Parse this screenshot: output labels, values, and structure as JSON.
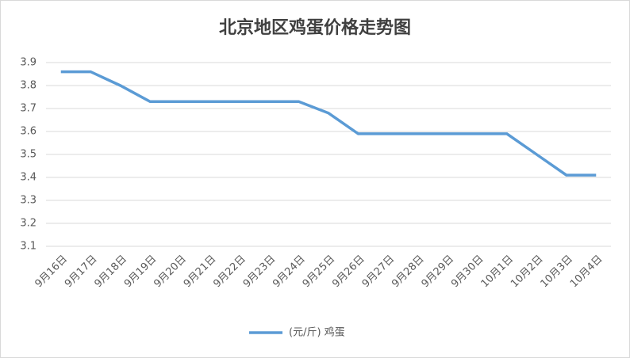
{
  "chart_data": {
    "type": "line",
    "title": "北京地区鸡蛋价格走势图",
    "categories": [
      "9月16日",
      "9月17日",
      "9月18日",
      "9月19日",
      "9月20日",
      "9月21日",
      "9月22日",
      "9月23日",
      "9月24日",
      "9月25日",
      "9月26日",
      "9月27日",
      "9月28日",
      "9月29日",
      "9月30日",
      "10月1日",
      "10月2日",
      "10月3日",
      "10月4日"
    ],
    "series": [
      {
        "name": "(元/斤) 鸡蛋",
        "color": "#5b9bd5",
        "values": [
          3.86,
          3.86,
          3.8,
          3.73,
          3.73,
          3.73,
          3.73,
          3.73,
          3.73,
          3.68,
          3.59,
          3.59,
          3.59,
          3.59,
          3.59,
          3.59,
          3.5,
          3.41,
          3.41
        ]
      }
    ],
    "ylim": [
      3.1,
      3.9
    ],
    "yticks": [
      3.1,
      3.2,
      3.3,
      3.4,
      3.5,
      3.6,
      3.7,
      3.8,
      3.9
    ],
    "grid": true,
    "legend": "bottom"
  }
}
